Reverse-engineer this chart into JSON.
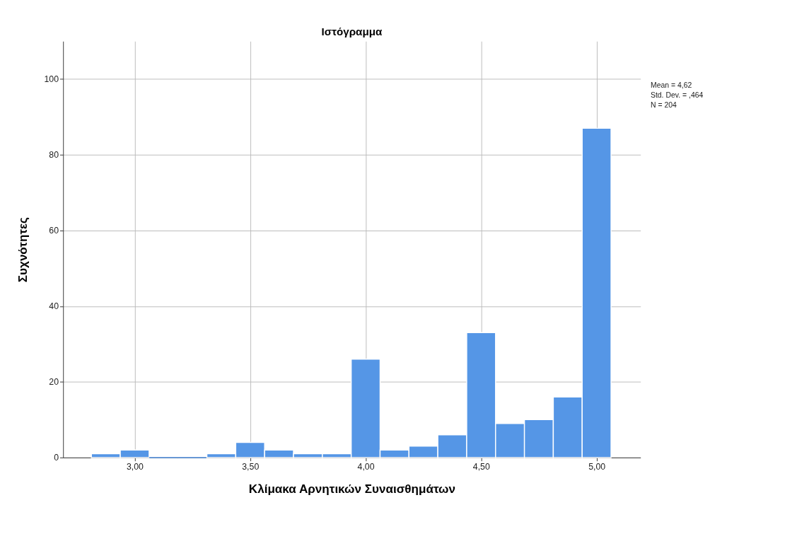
{
  "chart_data": {
    "type": "histogram",
    "title": "Ιστόγραμμα",
    "xlabel": "Κλίμακα Αρνητικών Συναισθημάτων",
    "ylabel": "Συχνότητες",
    "bins": [
      2.8125,
      2.9375,
      3.0625,
      3.1875,
      3.3125,
      3.4375,
      3.5625,
      3.6875,
      3.8125,
      3.9375,
      4.0625,
      4.1875,
      4.3125,
      4.4375,
      4.5625,
      4.6875,
      4.8125,
      4.9375,
      5.0625
    ],
    "values": [
      1,
      2,
      0,
      0,
      1,
      4,
      2,
      1,
      1,
      26,
      2,
      3,
      6,
      33,
      9,
      10,
      16,
      87
    ],
    "color": "#5596e6",
    "xlim": [
      2.69,
      5.19
    ],
    "ylim": [
      0,
      110
    ],
    "xticks": [
      {
        "value": 3,
        "label": "3,00"
      },
      {
        "value": 3.5,
        "label": "3,50"
      },
      {
        "value": 4,
        "label": "4,00"
      },
      {
        "value": 4.5,
        "label": "4,50"
      },
      {
        "value": 5,
        "label": "5,00"
      }
    ],
    "yticks": [
      0,
      20,
      40,
      60,
      80,
      100
    ],
    "grid": true,
    "annotations": [
      "Mean = 4,62",
      "Std. Dev. = ,464",
      "N = 204"
    ]
  }
}
